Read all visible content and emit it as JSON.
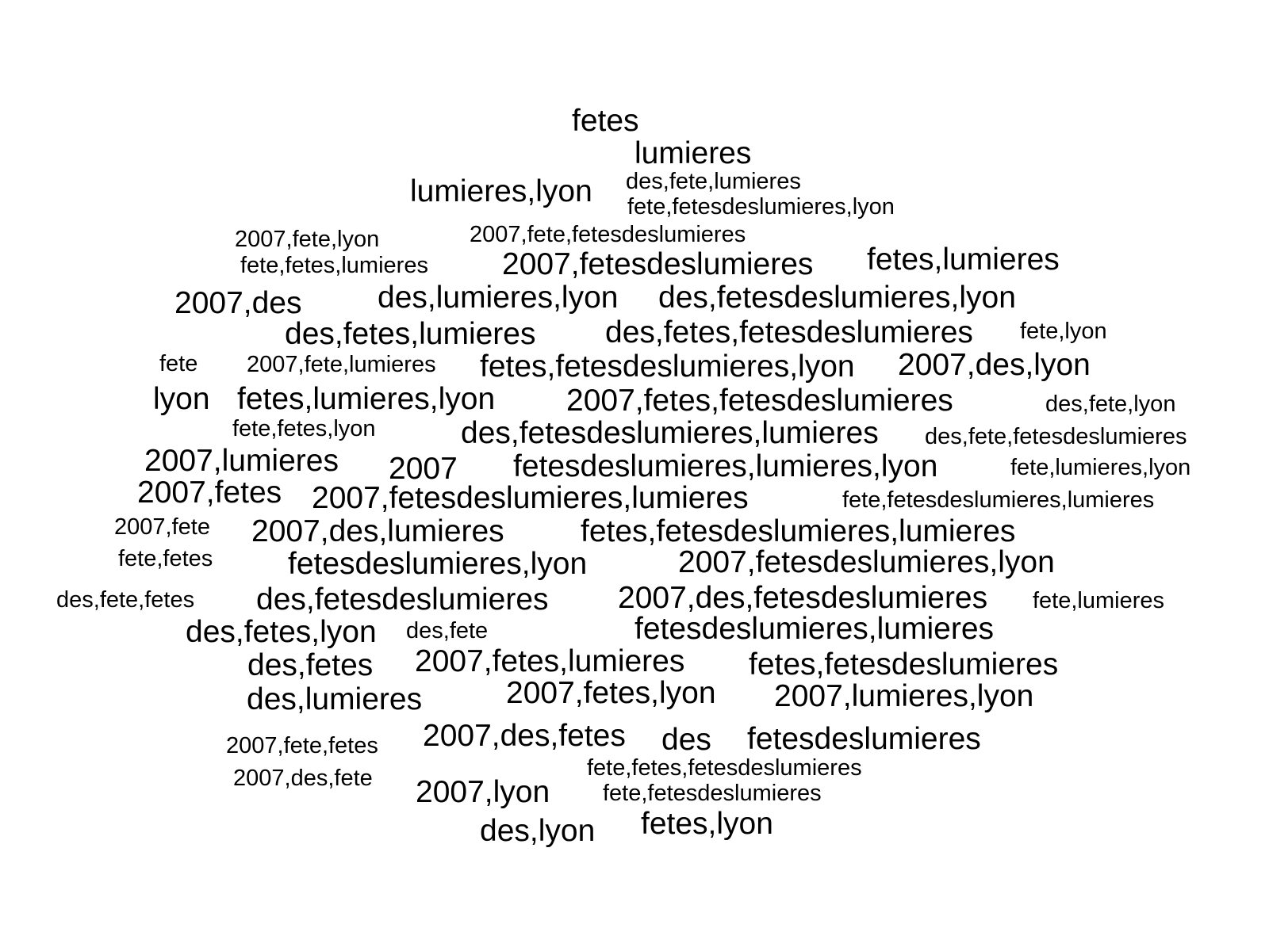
{
  "words": [
    "fetes",
    "lumieres",
    "lumieres,lyon",
    "des,fete,lumieres",
    "fete,fetesdeslumieres,lyon",
    "2007,fete,lyon",
    "2007,fete,fetesdeslumieres",
    "fete,fetes,lumieres",
    "2007,fetesdeslumieres",
    "fetes,lumieres",
    "2007,des",
    "des,lumieres,lyon",
    "des,fetesdeslumieres,lyon",
    "des,fetes,lumieres",
    "des,fetes,fetesdeslumieres",
    "fete,lyon",
    "fete",
    "2007,fete,lumieres",
    "fetes,fetesdeslumieres,lyon",
    "2007,des,lyon",
    "lyon",
    "fetes,lumieres,lyon",
    "2007,fetes,fetesdeslumieres",
    "des,fete,lyon",
    "fete,fetes,lyon",
    "des,fetesdeslumieres,lumieres",
    "des,fete,fetesdeslumieres",
    "2007,lumieres",
    "2007",
    "fetesdeslumieres,lumieres,lyon",
    "fete,lumieres,lyon",
    "2007,fetes",
    "2007,fetesdeslumieres,lumieres",
    "fete,fetesdeslumieres,lumieres",
    "2007,fete",
    "2007,des,lumieres",
    "fetes,fetesdeslumieres,lumieres",
    "fete,fetes",
    "fetesdeslumieres,lyon",
    "2007,fetesdeslumieres,lyon",
    "des,fete,fetes",
    "des,fetesdeslumieres",
    "2007,des,fetesdeslumieres",
    "fete,lumieres",
    "des,fetes,lyon",
    "des,fete",
    "fetesdeslumieres,lumieres",
    "des,fetes",
    "2007,fetes,lumieres",
    "fetes,fetesdeslumieres",
    "des,lumieres",
    "2007,fetes,lyon",
    "2007,lumieres,lyon",
    "2007,fete,fetes",
    "2007,des,fetes",
    "des",
    "fetesdeslumieres",
    "fete,fetes,fetesdeslumieres",
    "2007,des,fete",
    "2007,lyon",
    "fete,fetesdeslumieres",
    "des,lyon",
    "fetes,lyon"
  ]
}
